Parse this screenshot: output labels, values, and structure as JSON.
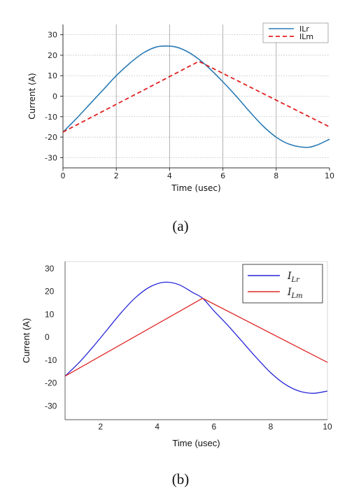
{
  "chart_data": [
    {
      "type": "line",
      "caption": "(a)",
      "xlabel": "Time (usec)",
      "ylabel": "Current (A)",
      "xlim": [
        0,
        10
      ],
      "ylim": [
        -35,
        35
      ],
      "xticks": [
        "0",
        "2",
        "4",
        "6",
        "8",
        "10"
      ],
      "yticks": [
        "30",
        "20",
        "10",
        "0",
        "-10",
        "-20",
        "-30"
      ],
      "grid": "vertical solid, horizontal dotted",
      "legend_position": "top-right",
      "series": [
        {
          "name": "ILr",
          "color": "#2a7bb5",
          "style": "solid",
          "x": [
            0,
            0.5,
            1,
            1.5,
            2,
            2.5,
            3,
            3.5,
            3.9,
            4.3,
            4.7,
            5.1,
            5.5,
            6,
            6.5,
            7,
            7.5,
            8,
            8.5,
            9.1,
            9.5,
            10
          ],
          "y": [
            -17.5,
            -11,
            -4,
            3,
            10,
            16,
            21,
            24,
            24.5,
            23.8,
            21.5,
            18,
            13.5,
            7,
            0,
            -7.5,
            -14.5,
            -20,
            -23.5,
            -25,
            -24,
            -21
          ]
        },
        {
          "name": "ILm",
          "color": "#e02020",
          "style": "dashed",
          "x": [
            0,
            5.1,
            10
          ],
          "y": [
            -17.5,
            17,
            -15
          ]
        }
      ]
    },
    {
      "type": "line",
      "caption": "(b)",
      "xlabel": "Time (usec)",
      "ylabel": "Current (A)",
      "xlim": [
        0.75,
        10
      ],
      "ylim": [
        -36,
        33
      ],
      "xticks": [
        "2",
        "4",
        "6",
        "8",
        "10"
      ],
      "yticks": [
        "30",
        "20",
        "10",
        "0",
        "-10",
        "-20",
        "-30"
      ],
      "grid": "light gray",
      "legend_position": "top-right",
      "series": [
        {
          "name": "I",
          "subscript": "Lr",
          "color": "#2626d9",
          "style": "solid",
          "x": [
            0.75,
            1.25,
            1.75,
            2.25,
            2.75,
            3.25,
            3.75,
            4.25,
            4.75,
            5.25,
            5.6,
            6,
            6.5,
            7,
            7.5,
            8,
            8.5,
            9,
            9.5,
            10
          ],
          "y": [
            -17,
            -11,
            -4,
            3.5,
            11,
            17.5,
            22,
            24,
            23,
            19.5,
            17,
            11.5,
            5,
            -2,
            -9,
            -15.5,
            -20.5,
            -23.5,
            -24.5,
            -23.5
          ]
        },
        {
          "name": "I",
          "subscript": "Lm",
          "color": "#e02828",
          "style": "solid",
          "x": [
            0.75,
            5.6,
            10
          ],
          "y": [
            -17,
            17,
            -11
          ]
        }
      ]
    }
  ]
}
